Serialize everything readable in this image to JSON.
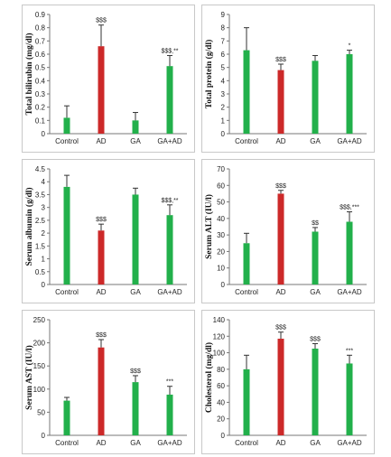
{
  "chart_data": [
    {
      "type": "bar",
      "ylabel": "Total bilirubin (mg/dl)",
      "categories": [
        "Control",
        "AD",
        "GA",
        "GA+AD"
      ],
      "values": [
        0.12,
        0.66,
        0.1,
        0.51
      ],
      "errors": [
        0.09,
        0.16,
        0.06,
        0.08
      ],
      "colors": [
        "#22b04b",
        "#cc2929",
        "#22b04b",
        "#22b04b"
      ],
      "significance": [
        "",
        "$$$",
        "",
        "$$$,**"
      ],
      "ylim": [
        0,
        0.9
      ],
      "yticks": [
        "0",
        "0.1",
        "0.2",
        "0.3",
        "0.4",
        "0.5",
        "0.6",
        "0.7",
        "0.8",
        "0.9"
      ],
      "grid": false
    },
    {
      "type": "bar",
      "ylabel": "Total protein (g/dl)",
      "categories": [
        "Control",
        "AD",
        "GA",
        "GA+AD"
      ],
      "values": [
        6.3,
        4.8,
        5.5,
        6.0
      ],
      "errors": [
        1.7,
        0.45,
        0.4,
        0.3
      ],
      "colors": [
        "#22b04b",
        "#cc2929",
        "#22b04b",
        "#22b04b"
      ],
      "significance": [
        "",
        "$$$",
        "",
        "*"
      ],
      "ylim": [
        0,
        9
      ],
      "yticks": [
        "0",
        "1",
        "2",
        "3",
        "4",
        "5",
        "6",
        "7",
        "8",
        "9"
      ],
      "grid": false
    },
    {
      "type": "bar",
      "ylabel": "Serum albumin (g/dl)",
      "categories": [
        "Control",
        "AD",
        "GA",
        "GA+AD"
      ],
      "values": [
        3.8,
        2.1,
        3.5,
        2.7
      ],
      "errors": [
        0.45,
        0.25,
        0.25,
        0.4
      ],
      "colors": [
        "#22b04b",
        "#cc2929",
        "#22b04b",
        "#22b04b"
      ],
      "significance": [
        "",
        "$$$",
        "",
        "$$$,**"
      ],
      "ylim": [
        0,
        4.5
      ],
      "yticks": [
        "0",
        "0.5",
        "1",
        "1.5",
        "2",
        "2.5",
        "3",
        "3.5",
        "4",
        "4.5"
      ],
      "grid": false
    },
    {
      "type": "bar",
      "ylabel": "Serum ALT (IU/l)",
      "categories": [
        "Control",
        "AD",
        "GA",
        "GA+AD"
      ],
      "values": [
        25,
        55,
        32,
        38
      ],
      "errors": [
        6,
        2,
        2.5,
        6
      ],
      "colors": [
        "#22b04b",
        "#cc2929",
        "#22b04b",
        "#22b04b"
      ],
      "significance": [
        "",
        "$$$",
        "$$",
        "$$$,***"
      ],
      "ylim": [
        0,
        70
      ],
      "yticks": [
        "0",
        "10",
        "20",
        "30",
        "40",
        "50",
        "60",
        "70"
      ],
      "grid": false
    },
    {
      "type": "bar",
      "ylabel": "Serum AST (IU/l)",
      "categories": [
        "Control",
        "AD",
        "GA",
        "GA+AD"
      ],
      "values": [
        75,
        190,
        115,
        88
      ],
      "errors": [
        7,
        17,
        14,
        18
      ],
      "colors": [
        "#22b04b",
        "#cc2929",
        "#22b04b",
        "#22b04b"
      ],
      "significance": [
        "",
        "$$$",
        "$$$",
        "***"
      ],
      "ylim": [
        0,
        250
      ],
      "yticks": [
        "0",
        "50",
        "100",
        "150",
        "200",
        "250"
      ],
      "grid": false
    },
    {
      "type": "bar",
      "ylabel": "Cholesterol (mg/dl)",
      "categories": [
        "Control",
        "AD",
        "GA",
        "GA+AD"
      ],
      "values": [
        80,
        117,
        105,
        87
      ],
      "errors": [
        17,
        8,
        6,
        10
      ],
      "colors": [
        "#22b04b",
        "#cc2929",
        "#22b04b",
        "#22b04b"
      ],
      "significance": [
        "",
        "$$$",
        "$$$",
        "***"
      ],
      "ylim": [
        0,
        140
      ],
      "yticks": [
        "0",
        "20",
        "40",
        "60",
        "80",
        "100",
        "120",
        "140"
      ],
      "grid": false
    }
  ]
}
